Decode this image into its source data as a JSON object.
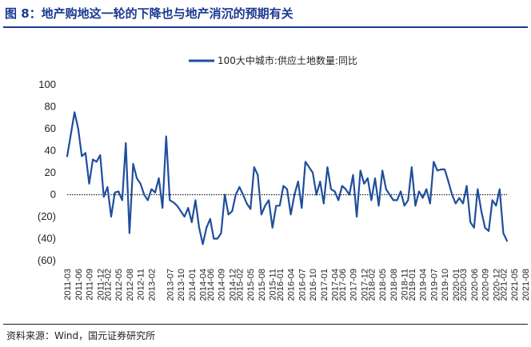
{
  "figure": {
    "title": "图 8：地产购地这一轮的下降也与地产消沉的预期有关",
    "source": "资料来源：Wind，国元证券研究所"
  },
  "colors": {
    "accent": "#1a3a8f",
    "series": "#1f4e9c"
  },
  "chart_data": {
    "type": "line",
    "title": "",
    "xlabel": "",
    "ylabel": "",
    "ylim": [
      -60,
      100
    ],
    "yticks": [
      100,
      80,
      60,
      40,
      20,
      0,
      -20,
      -40,
      -60
    ],
    "ytick_labels": [
      "100",
      "80",
      "60",
      "40",
      "20",
      "0",
      "(20)",
      "(40)",
      "(60)"
    ],
    "grid": false,
    "zero_line": "dotted",
    "legend": "top-center",
    "start": "2011-03",
    "xtick_labels": [
      "2011-03",
      "2011-06",
      "2011-09",
      "2011-12",
      "2012-02",
      "2012-05",
      "2012-08",
      "2012-11",
      "2013-02",
      "2013-07",
      "2013-10",
      "2014-01",
      "2014-04",
      "2014-06",
      "2014-09",
      "2014-12",
      "2015-02",
      "2015-05",
      "2015-08",
      "2015-11",
      "2016-01",
      "2016-04",
      "2016-07",
      "2016-10",
      "2017-01",
      "2017-04",
      "2017-06",
      "2017-09",
      "2017-12",
      "2018-02",
      "2018-05",
      "2018-08",
      "2018-11",
      "2019-01",
      "2019-04",
      "2019-07",
      "2019-10",
      "2020-01",
      "2020-03",
      "2020-06",
      "2020-09",
      "2020-12",
      "2021-02",
      "2021-05",
      "2021-08"
    ],
    "series": [
      {
        "name": "100大中城市:供应土地数量:同比",
        "values": [
          35,
          55,
          75,
          60,
          35,
          38,
          10,
          32,
          30,
          36,
          -2,
          7,
          -20,
          2,
          3,
          -5,
          47,
          -35,
          28,
          15,
          10,
          0,
          -5,
          5,
          2,
          15,
          -12,
          53,
          -5,
          -7,
          -10,
          -15,
          -20,
          -12,
          -25,
          -5,
          -30,
          -45,
          -30,
          -22,
          -40,
          -40,
          -35,
          0,
          -18,
          -15,
          0,
          7,
          0,
          -8,
          -13,
          25,
          18,
          -18,
          -10,
          -5,
          -30,
          -10,
          -10,
          8,
          5,
          -18,
          0,
          12,
          -12,
          30,
          25,
          20,
          0,
          12,
          -8,
          25,
          5,
          3,
          -5,
          8,
          5,
          0,
          18,
          -20,
          22,
          10,
          15,
          -5,
          15,
          -10,
          22,
          5,
          0,
          -5,
          -5,
          3,
          -10,
          -5,
          25,
          -10,
          3,
          -3,
          5,
          -8,
          30,
          22,
          23,
          23,
          12,
          0,
          -8,
          -3,
          -8,
          8,
          -25,
          -30,
          5,
          -15,
          -30,
          -33,
          -5,
          -10,
          5,
          -35,
          -42
        ]
      }
    ]
  }
}
